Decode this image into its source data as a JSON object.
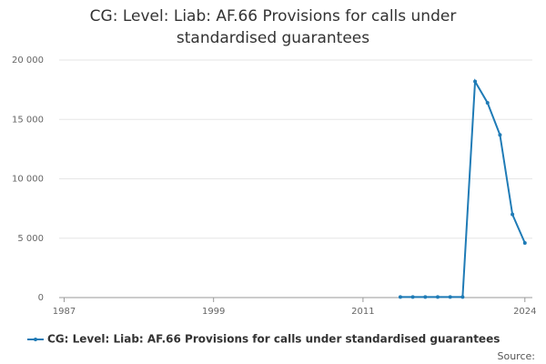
{
  "chart_data": {
    "type": "line",
    "title": "CG: Level: Liab: AF.66 Provisions for calls under standardised guarantees",
    "x": [
      2014,
      2015,
      2016,
      2017,
      2018,
      2019,
      2020,
      2021,
      2022,
      2023,
      2024
    ],
    "series": [
      {
        "name": "CG: Level: Liab: AF.66 Provisions for calls under standardised guarantees",
        "color": "#1f7bb6",
        "values": [
          50,
          50,
          50,
          50,
          50,
          50,
          18200,
          16400,
          13700,
          7000,
          4600
        ]
      }
    ],
    "xlim": [
      1986.6,
      2024.6
    ],
    "xticks": [
      1987,
      1999,
      2011,
      2024
    ],
    "ylim": [
      0,
      20000
    ],
    "yticks": [
      0,
      {
        "value": 5000,
        "label": "5 000"
      },
      {
        "value": 10000,
        "label": "10 000"
      },
      {
        "value": 15000,
        "label": "15 000"
      },
      {
        "value": 20000,
        "label": "20 000"
      }
    ],
    "grid": true,
    "legend": "bottom",
    "source": "Source:"
  }
}
